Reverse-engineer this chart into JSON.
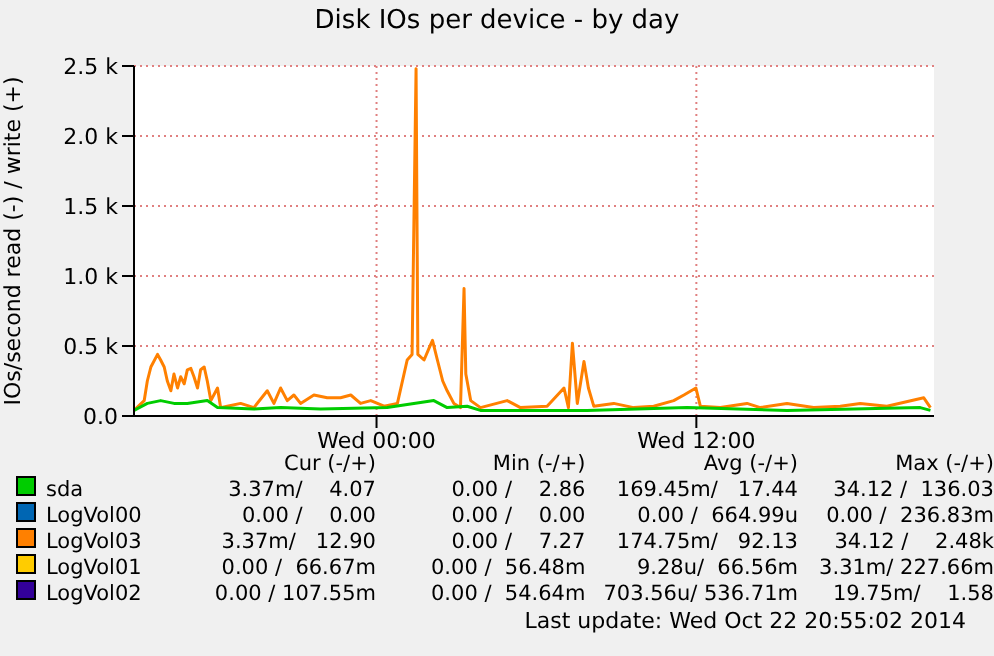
{
  "chart_data": {
    "type": "line",
    "title": "Disk IOs per device - by day",
    "ylabel": "IOs/second read (-) / write (+)",
    "xlim": [
      "2014-10-21T14:54",
      "2014-10-22T20:55"
    ],
    "xticks": [
      {
        "value": "2014-10-22T00:00",
        "label": "Wed 00:00"
      },
      {
        "value": "2014-10-22T12:00",
        "label": "Wed 12:00"
      }
    ],
    "ylim": [
      0,
      2500
    ],
    "yticks": [
      {
        "value": 0,
        "label": "0.0"
      },
      {
        "value": 500,
        "label": "0.5 k"
      },
      {
        "value": 1000,
        "label": "1.0 k"
      },
      {
        "value": 1500,
        "label": "1.5 k"
      },
      {
        "value": 2000,
        "label": "2.0 k"
      },
      {
        "value": 2500,
        "label": "2.5 k"
      }
    ],
    "grid": true,
    "legend": "bottom",
    "series": [
      {
        "name": "sda",
        "color": "#00cc00",
        "x": [
          "2014-10-21T14:54",
          "2014-10-21T15:24",
          "2014-10-21T15:54",
          "2014-10-21T16:24",
          "2014-10-21T16:54",
          "2014-10-21T17:39",
          "2014-10-21T18:02",
          "2014-10-21T19:24",
          "2014-10-21T20:24",
          "2014-10-21T21:54",
          "2014-10-22T00:24",
          "2014-10-22T01:24",
          "2014-10-22T02:09",
          "2014-10-22T02:39",
          "2014-10-22T03:24",
          "2014-10-22T03:54",
          "2014-10-22T07:54",
          "2014-10-22T11:39",
          "2014-10-22T15:24",
          "2014-10-22T20:24",
          "2014-10-22T20:47"
        ],
        "values": [
          40,
          90,
          110,
          90,
          90,
          110,
          60,
          50,
          60,
          50,
          60,
          90,
          110,
          60,
          70,
          40,
          40,
          60,
          40,
          60,
          40
        ]
      },
      {
        "name": "LogVol00",
        "color": "#0066b3"
      },
      {
        "name": "LogVol03",
        "color": "#ff8000",
        "x": [
          "2014-10-21T14:54",
          "2014-10-21T15:17",
          "2014-10-21T15:24",
          "2014-10-21T15:32",
          "2014-10-21T15:47",
          "2014-10-21T15:54",
          "2014-10-21T16:02",
          "2014-10-21T16:09",
          "2014-10-21T16:17",
          "2014-10-21T16:24",
          "2014-10-21T16:32",
          "2014-10-21T16:39",
          "2014-10-21T16:47",
          "2014-10-21T16:54",
          "2014-10-21T17:02",
          "2014-10-21T17:09",
          "2014-10-21T17:17",
          "2014-10-21T17:24",
          "2014-10-21T17:32",
          "2014-10-21T17:39",
          "2014-10-21T17:47",
          "2014-10-21T18:02",
          "2014-10-21T18:09",
          "2014-10-21T18:24",
          "2014-10-21T18:54",
          "2014-10-21T19:24",
          "2014-10-21T19:54",
          "2014-10-21T20:09",
          "2014-10-21T20:24",
          "2014-10-21T20:39",
          "2014-10-21T20:54",
          "2014-10-21T21:09",
          "2014-10-21T21:39",
          "2014-10-21T22:09",
          "2014-10-21T22:39",
          "2014-10-21T23:02",
          "2014-10-21T23:24",
          "2014-10-21T23:47",
          "2014-10-22T00:17",
          "2014-10-22T00:47",
          "2014-10-22T01:09",
          "2014-10-22T01:20",
          "2014-10-22T01:29",
          "2014-10-22T01:33",
          "2014-10-22T01:47",
          "2014-10-22T01:59",
          "2014-10-22T02:06",
          "2014-10-22T02:17",
          "2014-10-22T02:29",
          "2014-10-22T02:39",
          "2014-10-22T02:54",
          "2014-10-22T03:09",
          "2014-10-22T03:17",
          "2014-10-22T03:21",
          "2014-10-22T03:32",
          "2014-10-22T03:54",
          "2014-10-22T04:54",
          "2014-10-22T05:24",
          "2014-10-22T06:24",
          "2014-10-22T07:02",
          "2014-10-22T07:12",
          "2014-10-22T07:21",
          "2014-10-22T07:32",
          "2014-10-22T07:47",
          "2014-10-22T07:57",
          "2014-10-22T08:09",
          "2014-10-22T08:54",
          "2014-10-22T09:39",
          "2014-10-22T10:24",
          "2014-10-22T11:09",
          "2014-10-22T11:32",
          "2014-10-22T11:59",
          "2014-10-22T12:09",
          "2014-10-22T12:54",
          "2014-10-22T13:54",
          "2014-10-22T14:24",
          "2014-10-22T15:24",
          "2014-10-22T16:24",
          "2014-10-22T17:24",
          "2014-10-22T18:09",
          "2014-10-22T19:09",
          "2014-10-22T20:32",
          "2014-10-22T20:47"
        ],
        "values": [
          40,
          110,
          250,
          350,
          440,
          400,
          350,
          250,
          180,
          300,
          200,
          280,
          230,
          330,
          340,
          280,
          200,
          330,
          350,
          250,
          110,
          200,
          60,
          70,
          90,
          60,
          180,
          90,
          200,
          110,
          150,
          90,
          150,
          130,
          130,
          150,
          90,
          110,
          70,
          90,
          400,
          440,
          2480,
          440,
          400,
          490,
          540,
          400,
          250,
          180,
          90,
          60,
          910,
          300,
          110,
          60,
          110,
          60,
          70,
          200,
          60,
          520,
          90,
          390,
          200,
          70,
          90,
          60,
          70,
          110,
          150,
          200,
          70,
          60,
          90,
          60,
          90,
          60,
          70,
          90,
          70,
          130,
          60
        ]
      },
      {
        "name": "LogVol01",
        "color": "#ffcc00"
      },
      {
        "name": "LogVol02",
        "color": "#330099"
      }
    ],
    "annotations": [
      "Cur (-/+)",
      "Min (-/+)",
      "Avg (-/+)",
      "Max (-/+)",
      "3.37m/    4.07",
      "0.00 /    2.86",
      "169.45m/   17.44",
      "34.12 /  136.03",
      "0.00 /    0.00",
      "0.00 /    0.00",
      "0.00 /  664.99u",
      "0.00 /  236.83m",
      "3.37m/   12.90",
      "0.00 /    7.27",
      "174.75m/   92.13",
      "34.12 /    2.48k",
      "0.00 /  66.67m",
      "0.00 /  56.48m",
      "9.28u/  66.56m",
      "3.31m/ 227.66m",
      "0.00 / 107.55m",
      "0.00 /  54.64m",
      "703.56u/ 536.71m",
      "19.75m/    1.58",
      "Last update: Wed Oct 22 20:55:02 2014"
    ]
  }
}
